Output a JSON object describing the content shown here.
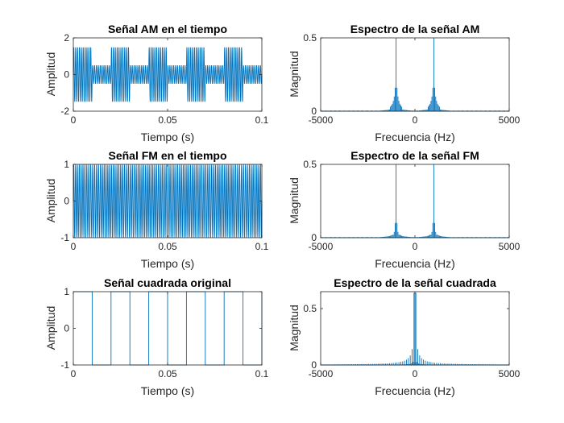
{
  "chart_data": [
    {
      "type": "line",
      "title": "Señal AM en el tiempo",
      "xlabel": "Tiempo (s)",
      "ylabel": "Amplitud",
      "xlim": [
        0,
        0.1
      ],
      "ylim": [
        -2,
        2
      ],
      "xticks": [
        0,
        0.05,
        0.1
      ],
      "xtick_labels": [
        "0",
        "0.05",
        "0.1"
      ],
      "yticks": [
        -2,
        0,
        2
      ],
      "ytick_labels": [
        "-2",
        "0",
        "2"
      ],
      "series": [
        {
          "carrier_hz": 1000,
          "modulating": "square",
          "modulating_hz": 50,
          "envelope_high": 1.5,
          "envelope_low": 0.5
        }
      ],
      "color": "#0072BD"
    },
    {
      "type": "line",
      "title": "Espectro de la señal AM",
      "xlabel": "Frecuencia (Hz)",
      "ylabel": "Magnitud",
      "xlim": [
        -5000,
        5000
      ],
      "ylim": [
        0,
        0.5
      ],
      "xticks": [
        -5000,
        0,
        5000
      ],
      "xtick_labels": [
        "-5000",
        "0",
        "5000"
      ],
      "yticks": [
        0,
        0.5
      ],
      "ytick_labels": [
        "0",
        "0.5"
      ],
      "series": [
        {
          "peaks_hz": [
            -1000,
            1000
          ],
          "peak_value": 0.5,
          "sidebands": [
            0.16,
            0.1,
            0.07,
            0.05,
            0.04,
            0.03
          ]
        }
      ],
      "color": "#0072BD"
    },
    {
      "type": "line",
      "title": "Señal FM en el tiempo",
      "xlabel": "Tiempo (s)",
      "ylabel": "Amplitud",
      "xlim": [
        0,
        0.1
      ],
      "ylim": [
        -1,
        1
      ],
      "xticks": [
        0,
        0.05,
        0.1
      ],
      "xtick_labels": [
        "0",
        "0.05",
        "0.1"
      ],
      "yticks": [
        -1,
        0,
        1
      ],
      "ytick_labels": [
        "-1",
        "0",
        "1"
      ],
      "series": [
        {
          "amplitude": 1,
          "carrier_hz": 1000,
          "cycles_shown": 100
        }
      ],
      "color": "#0072BD"
    },
    {
      "type": "line",
      "title": "Espectro de la señal FM",
      "xlabel": "Frecuencia (Hz)",
      "ylabel": "Magnitud",
      "xlim": [
        -5000,
        5000
      ],
      "ylim": [
        0,
        0.5
      ],
      "xticks": [
        -5000,
        0,
        5000
      ],
      "xtick_labels": [
        "-5000",
        "0",
        "5000"
      ],
      "yticks": [
        0,
        0.5
      ],
      "ytick_labels": [
        "0",
        "0.5"
      ],
      "series": [
        {
          "peaks_hz": [
            -1000,
            1000
          ],
          "peak_value": 0.5,
          "sidebands": [
            0.1,
            0.04,
            0.02
          ]
        }
      ],
      "color": "#0072BD"
    },
    {
      "type": "line",
      "title": "Señal cuadrada original",
      "xlabel": "Tiempo (s)",
      "ylabel": "Amplitud",
      "xlim": [
        0,
        0.1
      ],
      "ylim": [
        -1,
        1
      ],
      "xticks": [
        0,
        0.05,
        0.1
      ],
      "xtick_labels": [
        "0",
        "0.05",
        "0.1"
      ],
      "yticks": [
        -1,
        0,
        1
      ],
      "ytick_labels": [
        "-1",
        "0",
        "1"
      ],
      "series": [
        {
          "waveform": "square",
          "period_s": 0.02,
          "amplitude": 1
        }
      ],
      "color": "#0072BD"
    },
    {
      "type": "line",
      "title": "Espectro de la señal cuadrada",
      "xlabel": "Frecuencia (Hz)",
      "ylabel": "Magnitud",
      "xlim": [
        -5000,
        5000
      ],
      "ylim": [
        0,
        0.65
      ],
      "xticks": [
        -5000,
        0,
        5000
      ],
      "xtick_labels": [
        "-5000",
        "0",
        "5000"
      ],
      "yticks": [
        0,
        0.5
      ],
      "ytick_labels": [
        "0",
        "0.5"
      ],
      "series": [
        {
          "peaks_hz": [
            -50,
            50
          ],
          "peak_value": 0.64
        }
      ],
      "color": "#0072BD"
    }
  ]
}
